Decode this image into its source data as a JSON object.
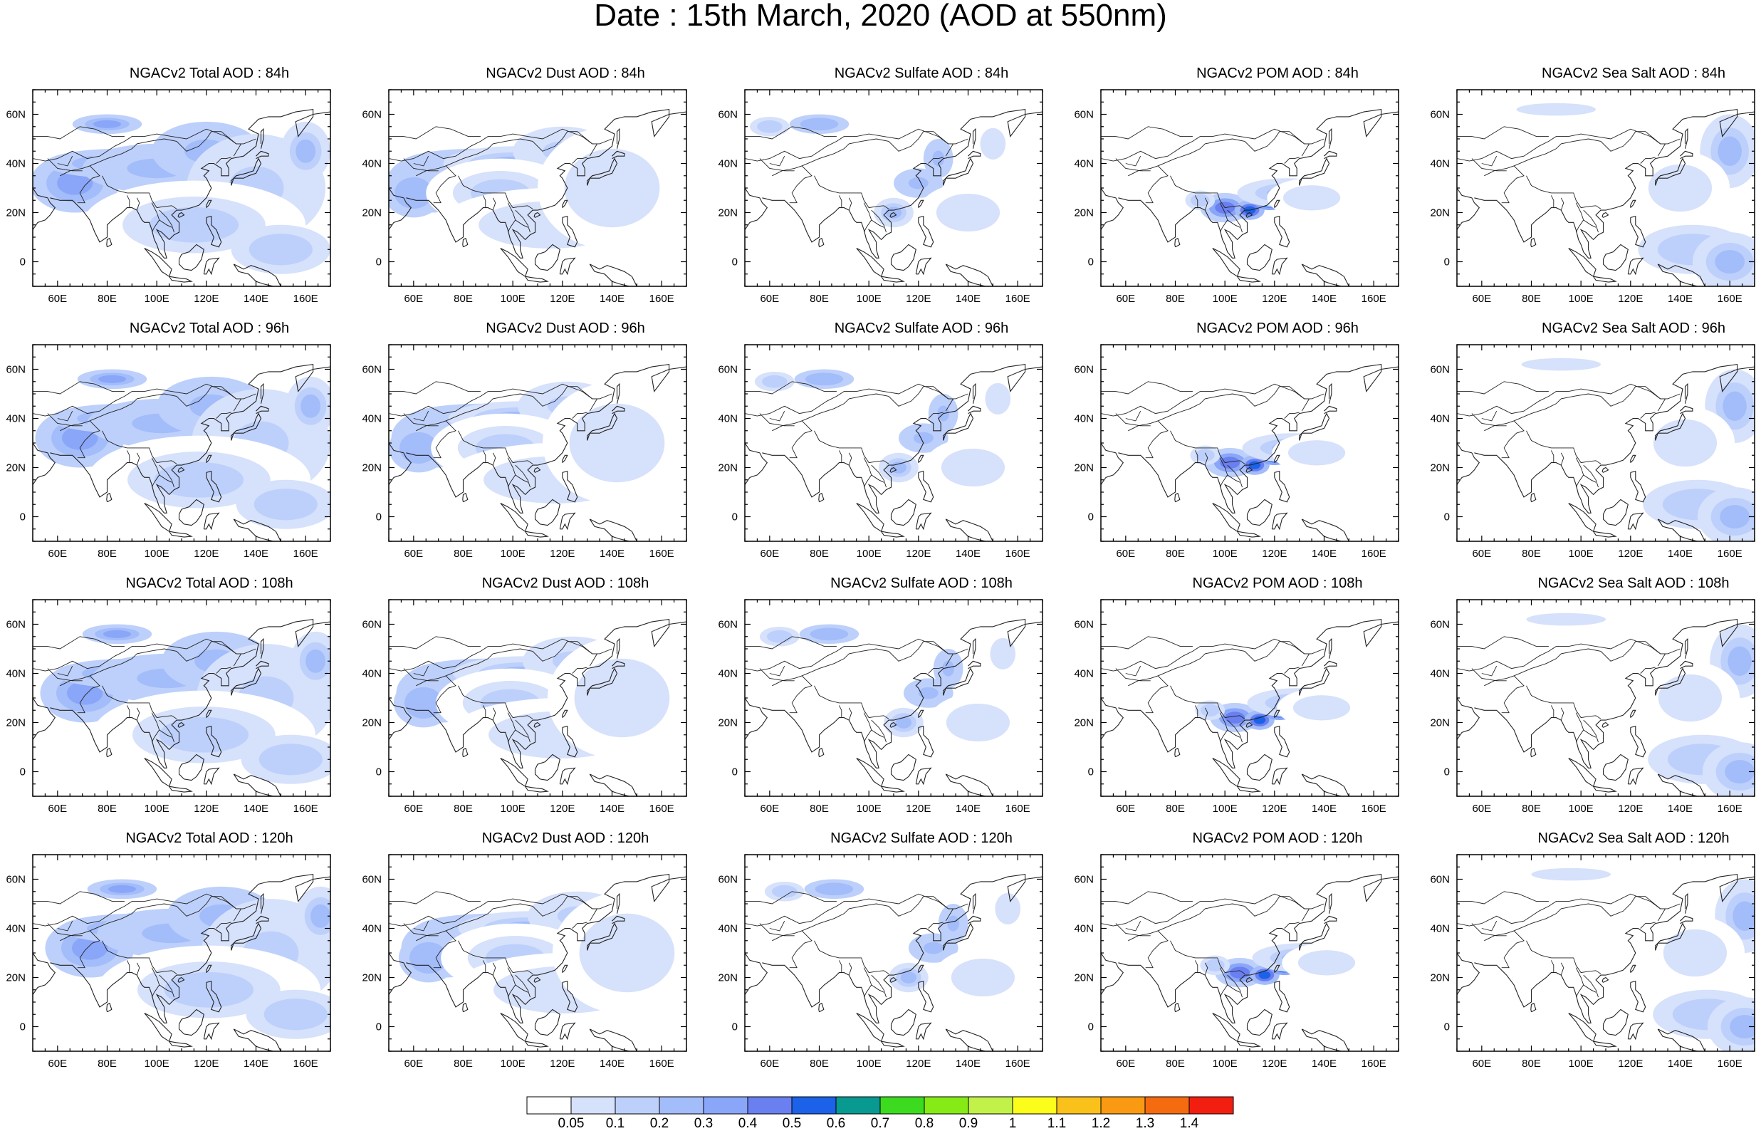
{
  "figure": {
    "title": "Date : 15th March, 2020 (AOD at 550nm)"
  },
  "panels": [
    {
      "title": "NGACv2 Total AOD : 84h",
      "species": "total",
      "lead": 84
    },
    {
      "title": "NGACv2 Dust AOD : 84h",
      "species": "dust",
      "lead": 84
    },
    {
      "title": "NGACv2 Sulfate AOD : 84h",
      "species": "sulfate",
      "lead": 84
    },
    {
      "title": "NGACv2 POM AOD : 84h",
      "species": "pom",
      "lead": 84
    },
    {
      "title": "NGACv2 Sea Salt AOD : 84h",
      "species": "seasalt",
      "lead": 84
    },
    {
      "title": "NGACv2 Total AOD : 96h",
      "species": "total",
      "lead": 96
    },
    {
      "title": "NGACv2 Dust AOD : 96h",
      "species": "dust",
      "lead": 96
    },
    {
      "title": "NGACv2 Sulfate AOD : 96h",
      "species": "sulfate",
      "lead": 96
    },
    {
      "title": "NGACv2 POM AOD : 96h",
      "species": "pom",
      "lead": 96
    },
    {
      "title": "NGACv2 Sea Salt AOD : 96h",
      "species": "seasalt",
      "lead": 96
    },
    {
      "title": "NGACv2 Total AOD : 108h",
      "species": "total",
      "lead": 108
    },
    {
      "title": "NGACv2 Dust AOD : 108h",
      "species": "dust",
      "lead": 108
    },
    {
      "title": "NGACv2 Sulfate AOD : 108h",
      "species": "sulfate",
      "lead": 108
    },
    {
      "title": "NGACv2 POM AOD : 108h",
      "species": "pom",
      "lead": 108
    },
    {
      "title": "NGACv2 Sea Salt AOD : 108h",
      "species": "seasalt",
      "lead": 108
    },
    {
      "title": "NGACv2 Total AOD : 120h",
      "species": "total",
      "lead": 120
    },
    {
      "title": "NGACv2 Dust AOD : 120h",
      "species": "dust",
      "lead": 120
    },
    {
      "title": "NGACv2 Sulfate AOD : 120h",
      "species": "sulfate",
      "lead": 120
    },
    {
      "title": "NGACv2 POM AOD : 120h",
      "species": "pom",
      "lead": 120
    },
    {
      "title": "NGACv2 Sea Salt  AOD : 120h",
      "species": "seasalt",
      "lead": 120
    }
  ],
  "map_axes": {
    "lon_range": [
      50,
      170
    ],
    "lat_range": [
      -10,
      70
    ],
    "lon_ticks": [
      60,
      80,
      100,
      120,
      140,
      160
    ],
    "lon_tick_labels": [
      "60E",
      "80E",
      "100E",
      "120E",
      "140E",
      "160E"
    ],
    "lat_ticks": [
      0,
      20,
      40,
      60
    ],
    "lat_tick_labels": [
      "0",
      "20N",
      "40N",
      "60N"
    ]
  },
  "colorbar": {
    "levels": [
      0.05,
      0.1,
      0.2,
      0.3,
      0.4,
      0.5,
      0.6,
      0.7,
      0.8,
      0.9,
      1,
      1.1,
      1.2,
      1.3,
      1.4
    ],
    "labels": [
      "0.05",
      "0.1",
      "0.2",
      "0.3",
      "0.4",
      "0.5",
      "0.6",
      "0.7",
      "0.8",
      "0.9",
      "1",
      "1.1",
      "1.2",
      "1.3",
      "1.4"
    ],
    "colors": [
      "#ffffff",
      "#d6e1fb",
      "#bdd0fb",
      "#a3bcfa",
      "#8aa6f8",
      "#6a7ff0",
      "#1b62e8",
      "#089990",
      "#3ddb1f",
      "#86ea16",
      "#c2f24a",
      "#fdfd1c",
      "#fbc11b",
      "#f99a12",
      "#f56b10",
      "#f21f10"
    ]
  }
}
